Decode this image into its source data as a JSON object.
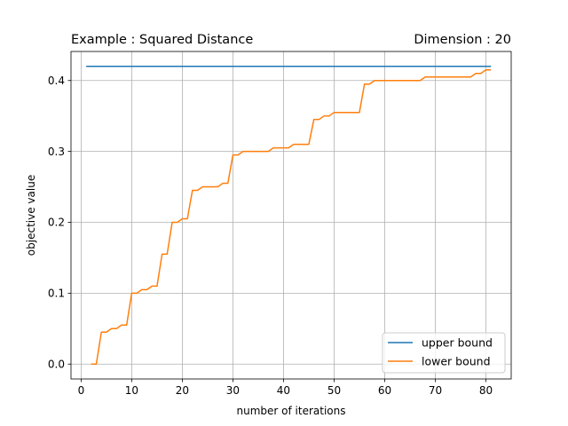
{
  "chart_data": {
    "type": "line",
    "title_left": "Example : Squared Distance",
    "title_right": "Dimension : 20",
    "xlabel": "number of iterations",
    "ylabel": "objective value",
    "xlim": [
      -2.0,
      85.0
    ],
    "ylim": [
      -0.021,
      0.441
    ],
    "xticks": [
      0,
      10,
      20,
      30,
      40,
      50,
      60,
      70,
      80
    ],
    "xtick_labels": [
      "0",
      "10",
      "20",
      "30",
      "40",
      "50",
      "60",
      "70",
      "80"
    ],
    "yticks": [
      0.0,
      0.1,
      0.2,
      0.3,
      0.4
    ],
    "ytick_labels": [
      "0.0",
      "0.1",
      "0.2",
      "0.3",
      "0.4"
    ],
    "grid": true,
    "legend_position": "lower-right",
    "series": [
      {
        "name": "upper bound",
        "color": "#1f77b4",
        "x": [
          1,
          81
        ],
        "y": [
          0.42,
          0.42
        ]
      },
      {
        "name": "lower bound",
        "color": "#ff7f0e",
        "x": [
          2,
          3,
          4,
          5,
          6,
          7,
          8,
          9,
          10,
          11,
          12,
          13,
          14,
          15,
          16,
          17,
          18,
          19,
          20,
          21,
          22,
          23,
          24,
          25,
          26,
          27,
          28,
          29,
          30,
          31,
          32,
          33,
          34,
          35,
          36,
          37,
          38,
          39,
          40,
          41,
          42,
          43,
          44,
          45,
          46,
          47,
          48,
          49,
          50,
          51,
          52,
          53,
          54,
          55,
          56,
          57,
          58,
          59,
          60,
          61,
          62,
          63,
          64,
          65,
          66,
          67,
          68,
          69,
          70,
          71,
          72,
          73,
          74,
          75,
          76,
          77,
          78,
          79,
          80,
          81
        ],
        "y": [
          0.0,
          0.0,
          0.045,
          0.045,
          0.05,
          0.05,
          0.055,
          0.055,
          0.1,
          0.1,
          0.105,
          0.105,
          0.11,
          0.11,
          0.155,
          0.155,
          0.2,
          0.2,
          0.205,
          0.205,
          0.245,
          0.245,
          0.25,
          0.25,
          0.25,
          0.25,
          0.255,
          0.255,
          0.295,
          0.295,
          0.3,
          0.3,
          0.3,
          0.3,
          0.3,
          0.3,
          0.305,
          0.305,
          0.305,
          0.305,
          0.31,
          0.31,
          0.31,
          0.31,
          0.345,
          0.345,
          0.35,
          0.35,
          0.355,
          0.355,
          0.355,
          0.355,
          0.355,
          0.355,
          0.395,
          0.395,
          0.4,
          0.4,
          0.4,
          0.4,
          0.4,
          0.4,
          0.4,
          0.4,
          0.4,
          0.4,
          0.405,
          0.405,
          0.405,
          0.405,
          0.405,
          0.405,
          0.405,
          0.405,
          0.405,
          0.405,
          0.41,
          0.41,
          0.415,
          0.415
        ]
      }
    ]
  }
}
